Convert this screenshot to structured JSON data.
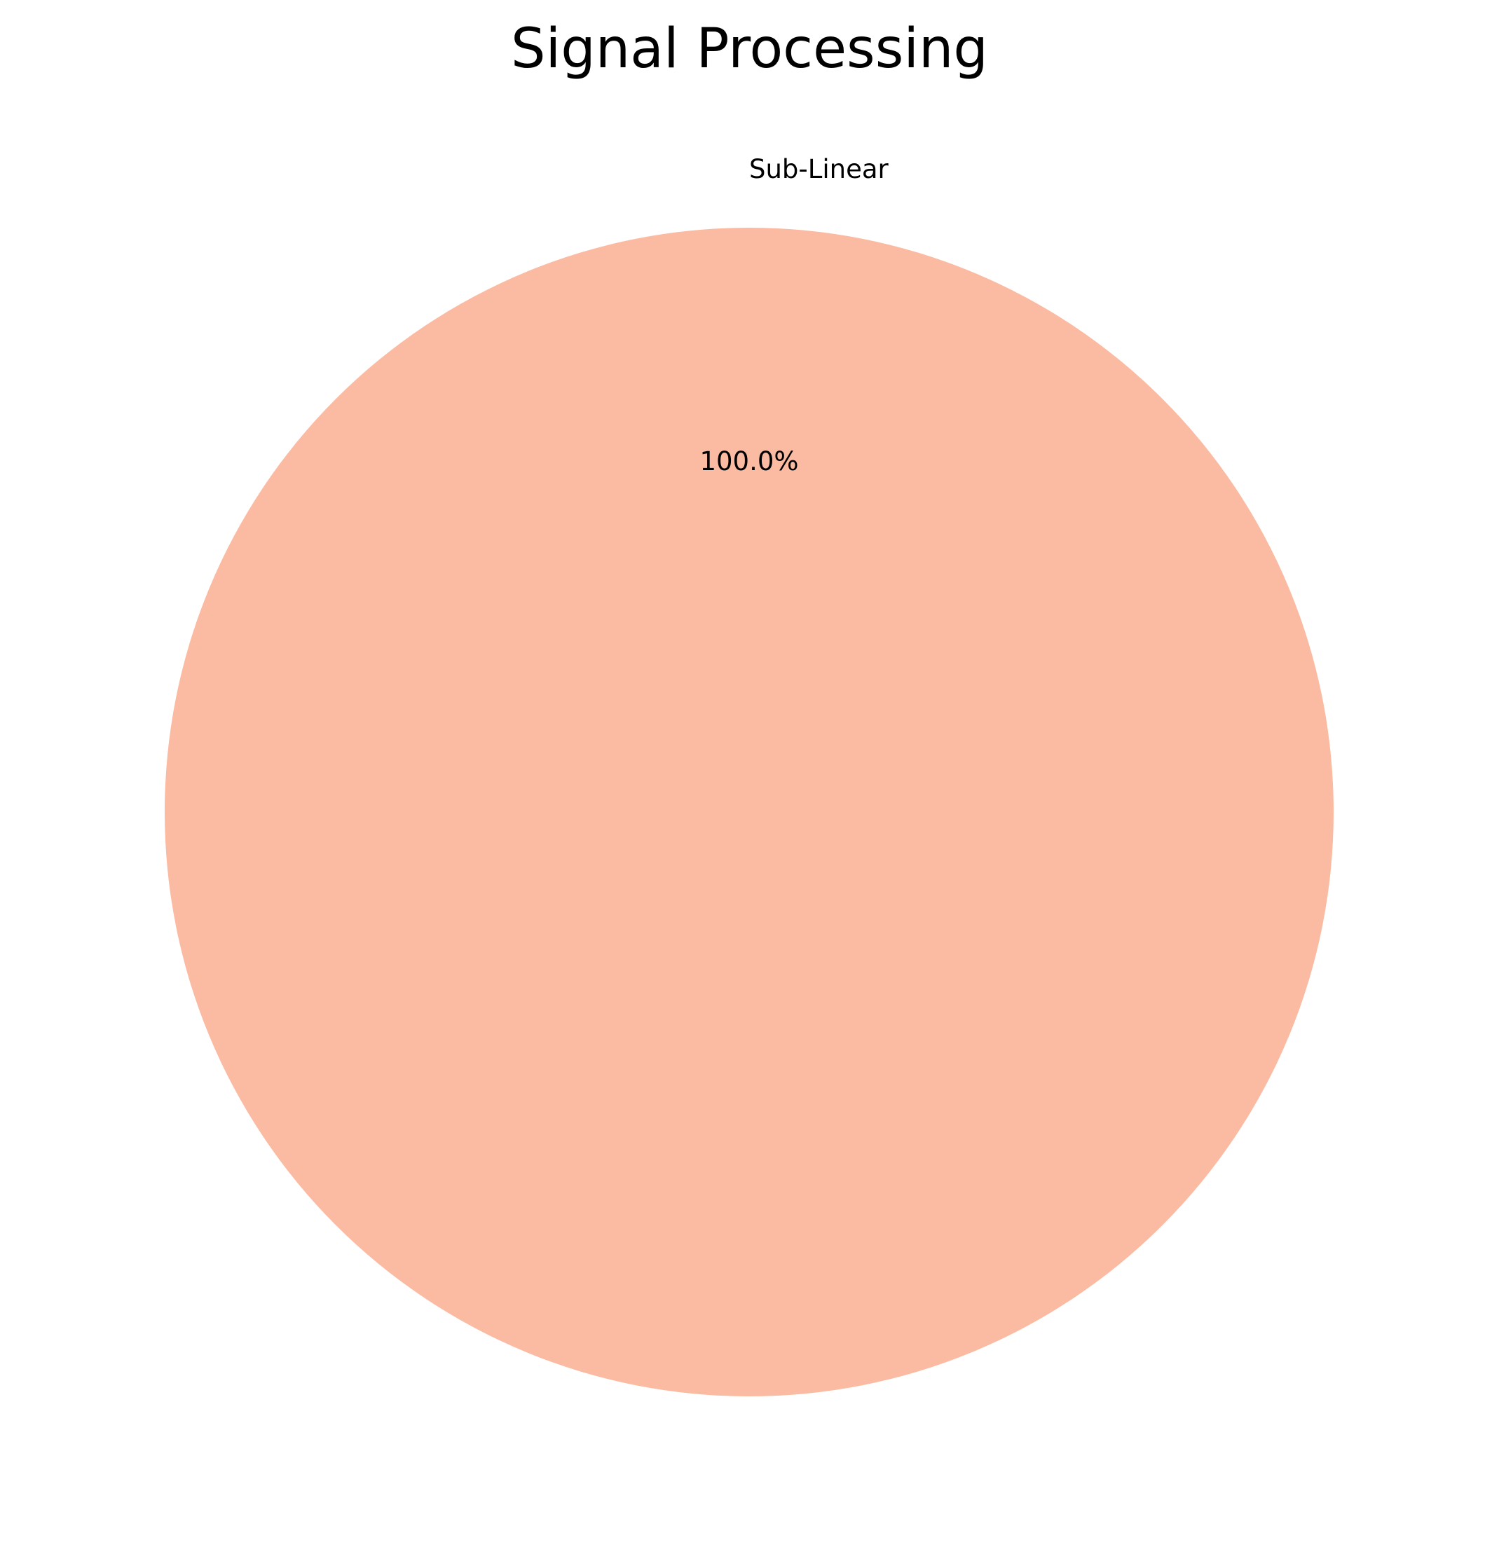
{
  "chart_data": {
    "type": "pie",
    "title": "Signal Processing",
    "categories": [
      "Sub-Linear"
    ],
    "values": [
      100.0
    ],
    "autopct_labels": [
      "100.0%"
    ],
    "colors": [
      "#fbbba2"
    ]
  }
}
